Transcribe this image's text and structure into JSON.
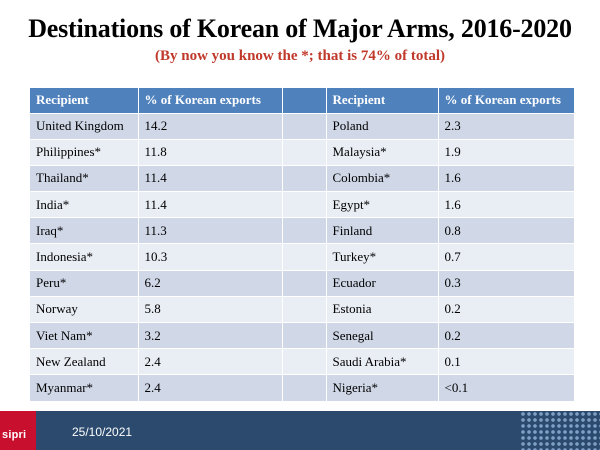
{
  "title": "Destinations of Korean of Major Arms, 2016-2020",
  "subtitle": "(By now you know the *; that is 74% of total)",
  "table": {
    "headers": {
      "recipient_left": "Recipient",
      "pct_left": "% of Korean exports",
      "recipient_right": "Recipient",
      "pct_right": "% of Korean exports"
    },
    "rows": [
      {
        "left_recipient": "United Kingdom",
        "left_pct": "14.2",
        "right_recipient": "Poland",
        "right_pct": "2.3"
      },
      {
        "left_recipient": "Philippines*",
        "left_pct": "11.8",
        "right_recipient": "Malaysia*",
        "right_pct": "1.9"
      },
      {
        "left_recipient": "Thailand*",
        "left_pct": "11.4",
        "right_recipient": "Colombia*",
        "right_pct": "1.6"
      },
      {
        "left_recipient": "India*",
        "left_pct": "11.4",
        "right_recipient": "Egypt*",
        "right_pct": "1.6"
      },
      {
        "left_recipient": "Iraq*",
        "left_pct": "11.3",
        "right_recipient": "Finland",
        "right_pct": "0.8"
      },
      {
        "left_recipient": "Indonesia*",
        "left_pct": "10.3",
        "right_recipient": "Turkey*",
        "right_pct": "0.7"
      },
      {
        "left_recipient": "Peru*",
        "left_pct": "6.2",
        "right_recipient": "Ecuador",
        "right_pct": "0.3"
      },
      {
        "left_recipient": "Norway",
        "left_pct": "5.8",
        "right_recipient": "Estonia",
        "right_pct": "0.2"
      },
      {
        "left_recipient": "Viet Nam*",
        "left_pct": "3.2",
        "right_recipient": "Senegal",
        "right_pct": "0.2"
      },
      {
        "left_recipient": "New Zealand",
        "left_pct": "2.4",
        "right_recipient": "Saudi Arabia*",
        "right_pct": "0.1"
      },
      {
        "left_recipient": "Myanmar*",
        "left_pct": "2.4",
        "right_recipient": "Nigeria*",
        "right_pct": "<0.1"
      }
    ]
  },
  "footer": {
    "logo_text": "sipri",
    "date": "25/10/2021"
  },
  "colors": {
    "header_fill": "#4f81bd",
    "row_odd": "#d0d8e8",
    "row_even": "#e9edf4",
    "subtitle": "#c0392b",
    "footer_bar": "#2b4a6e",
    "logo_red": "#c8102e"
  }
}
